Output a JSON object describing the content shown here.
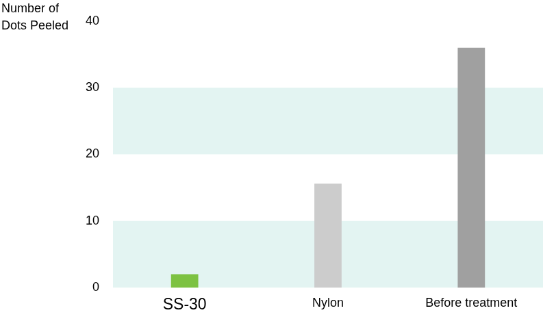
{
  "chart_data": {
    "type": "bar",
    "y_label": [
      "Number of",
      "Dots Peeled"
    ],
    "categories": [
      "SS-30",
      "Nylon",
      "Before treatment"
    ],
    "values": [
      2,
      15.6,
      36
    ],
    "colors": [
      "#7dc242",
      "#cccccc",
      "#a0a0a0"
    ],
    "ylim": [
      0,
      40
    ],
    "yticks": [
      0,
      10,
      20,
      30,
      40
    ],
    "grid": true
  }
}
